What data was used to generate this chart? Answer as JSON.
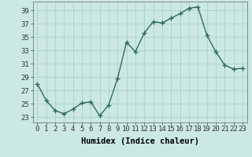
{
  "x": [
    0,
    1,
    2,
    3,
    4,
    5,
    6,
    7,
    8,
    9,
    10,
    11,
    12,
    13,
    14,
    15,
    16,
    17,
    18,
    19,
    20,
    21,
    22,
    23
  ],
  "y": [
    28,
    25.5,
    24,
    23.5,
    24.2,
    25.1,
    25.3,
    23.2,
    24.8,
    28.8,
    34.2,
    32.8,
    35.6,
    37.3,
    37.1,
    37.8,
    38.5,
    39.3,
    39.5,
    35.3,
    32.8,
    30.8,
    30.2,
    30.3
  ],
  "line_color": "#2e6b5e",
  "marker": "+",
  "marker_size": 4,
  "marker_linewidth": 1.0,
  "bg_color": "#cce8e4",
  "grid_color": "#aed4cf",
  "xlabel": "Humidex (Indice chaleur)",
  "yticks": [
    23,
    25,
    27,
    29,
    31,
    33,
    35,
    37,
    39
  ],
  "xticks": [
    0,
    1,
    2,
    3,
    4,
    5,
    6,
    7,
    8,
    9,
    10,
    11,
    12,
    13,
    14,
    15,
    16,
    17,
    18,
    19,
    20,
    21,
    22,
    23
  ],
  "ylim": [
    22.2,
    40.3
  ],
  "xlim": [
    -0.5,
    23.5
  ],
  "xlabel_fontsize": 7.5,
  "tick_fontsize": 6.5,
  "line_width": 1.0
}
